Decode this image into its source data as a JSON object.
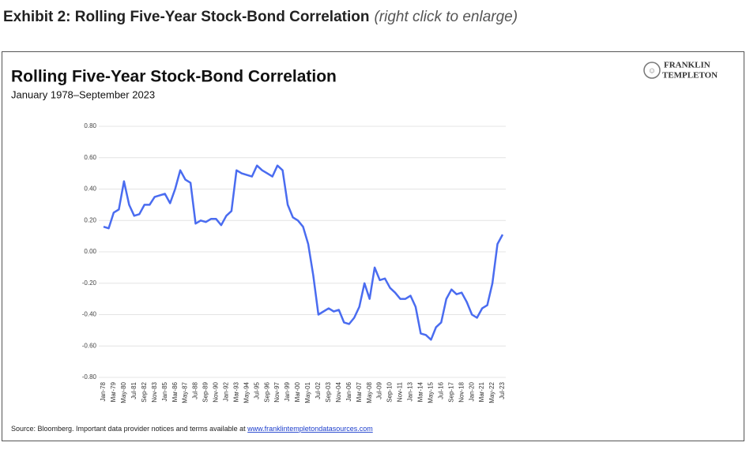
{
  "header": {
    "title": "Exhibit 2: Rolling Five-Year Stock-Bond Correlation",
    "hint": "(right click to enlarge)"
  },
  "logo": [
    "FRANKLIN",
    "TEMPLETON"
  ],
  "chart_data": {
    "type": "line",
    "title": "Rolling Five-Year Stock-Bond Correlation",
    "subtitle": "January 1978–September 2023",
    "color": "#4a6cf0",
    "grid": true,
    "categories": [
      "Jan-78",
      null,
      "Mar-79",
      null,
      "May-80",
      null,
      "Jul-81",
      null,
      "Sep-82",
      null,
      "Nov-83",
      null,
      "Jan-85",
      null,
      "Mar-86",
      null,
      "May-87",
      null,
      "Jul-88",
      null,
      "Sep-89",
      null,
      "Nov-90",
      null,
      "Jan-92",
      null,
      "Mar-93",
      null,
      "May-94",
      null,
      "Jul-95",
      null,
      "Sep-96",
      null,
      "Nov-97",
      null,
      "Jan-99",
      null,
      "Mar-00",
      null,
      "May-01",
      null,
      "Jul-02",
      null,
      "Sep-03",
      null,
      "Nov-04",
      null,
      "Jan-06",
      null,
      "Mar-07",
      null,
      "May-08",
      null,
      "Jul-09",
      null,
      "Sep-10",
      null,
      "Nov-11",
      null,
      "Jan-13",
      null,
      "Mar-14",
      null,
      "May-15",
      null,
      "Jul-16",
      null,
      "Sep-17",
      null,
      "Nov-18",
      null,
      "Jan-20",
      null,
      "Mar-21",
      null,
      "May-22",
      null,
      "Jul-23"
    ],
    "values": [
      0.16,
      0.15,
      0.25,
      0.27,
      0.45,
      0.3,
      0.23,
      0.24,
      0.3,
      0.3,
      0.35,
      0.36,
      0.37,
      0.31,
      0.4,
      0.52,
      0.46,
      0.44,
      0.18,
      0.2,
      0.19,
      0.21,
      0.21,
      0.17,
      0.23,
      0.26,
      0.52,
      0.5,
      0.49,
      0.48,
      0.55,
      0.52,
      0.5,
      0.48,
      0.55,
      0.52,
      0.3,
      0.22,
      0.2,
      0.16,
      0.05,
      -0.15,
      -0.4,
      -0.38,
      -0.36,
      -0.38,
      -0.37,
      -0.45,
      -0.46,
      -0.42,
      -0.35,
      -0.2,
      -0.3,
      -0.1,
      -0.18,
      -0.17,
      -0.23,
      -0.26,
      -0.3,
      -0.3,
      -0.28,
      -0.35,
      -0.52,
      -0.53,
      -0.56,
      -0.48,
      -0.45,
      -0.3,
      -0.24,
      -0.27,
      -0.26,
      -0.32,
      -0.4,
      -0.42,
      -0.36,
      -0.34,
      -0.2,
      0.05,
      0.11
    ],
    "ylim": [
      -0.8,
      0.8
    ],
    "yticks": [
      {
        "value": -0.8,
        "label": "-0.80"
      },
      {
        "value": -0.6,
        "label": "-0.60"
      },
      {
        "value": -0.4,
        "label": "-0.40"
      },
      {
        "value": -0.2,
        "label": "-0.20"
      },
      {
        "value": 0,
        "label": "0.00"
      },
      {
        "value": 0.2,
        "label": "0.20"
      },
      {
        "value": 0.4,
        "label": "0.40"
      },
      {
        "value": 0.6,
        "label": "0.60"
      },
      {
        "value": 0.8,
        "label": "0.80"
      }
    ]
  },
  "source": {
    "text": "Source: Bloomberg. Important data provider notices and terms available at ",
    "link": "www.franklintempletondatasources.com"
  }
}
